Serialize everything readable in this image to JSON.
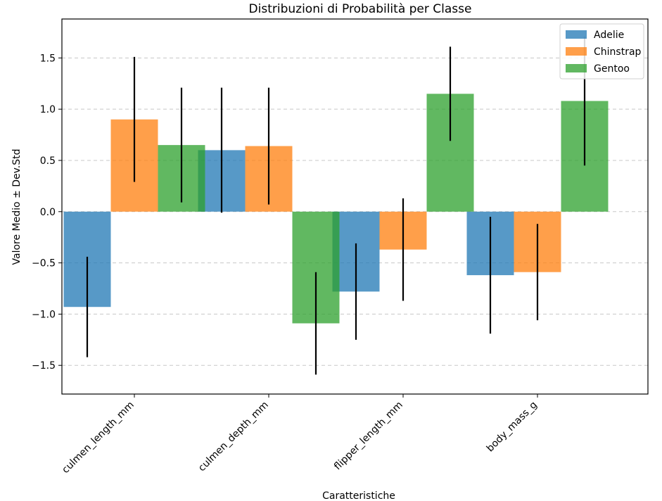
{
  "chart_data": {
    "type": "bar",
    "title": "Distribuzioni di Probabilità per Classe",
    "xlabel": "Caratteristiche",
    "ylabel": "Valore Medio ± Dev.Std",
    "ylim": [
      -1.78,
      1.88
    ],
    "yticks": [
      -1.5,
      -1.0,
      -0.5,
      0.0,
      0.5,
      1.0,
      1.5
    ],
    "ytick_labels": [
      "−1.5",
      "−1.0",
      "−0.5",
      "0.0",
      "0.5",
      "1.0",
      "1.5"
    ],
    "grid": "y-dashed",
    "legend_position": "top-right",
    "categories": [
      "culmen_length_mm",
      "culmen_depth_mm",
      "flipper_length_mm",
      "body_mass_g"
    ],
    "series": [
      {
        "name": "Adelie",
        "color": "#1f77b4",
        "values": [
          -0.93,
          0.6,
          -0.78,
          -0.62
        ],
        "errors": [
          0.49,
          0.61,
          0.47,
          0.57
        ]
      },
      {
        "name": "Chinstrap",
        "color": "#ff7f0e",
        "values": [
          0.9,
          0.64,
          -0.37,
          -0.59
        ],
        "errors": [
          0.61,
          0.57,
          0.5,
          0.47
        ]
      },
      {
        "name": "Gentoo",
        "color": "#2ca02c",
        "values": [
          0.65,
          -1.09,
          1.15,
          1.08
        ],
        "errors": [
          0.56,
          0.5,
          0.46,
          0.63
        ]
      }
    ]
  }
}
